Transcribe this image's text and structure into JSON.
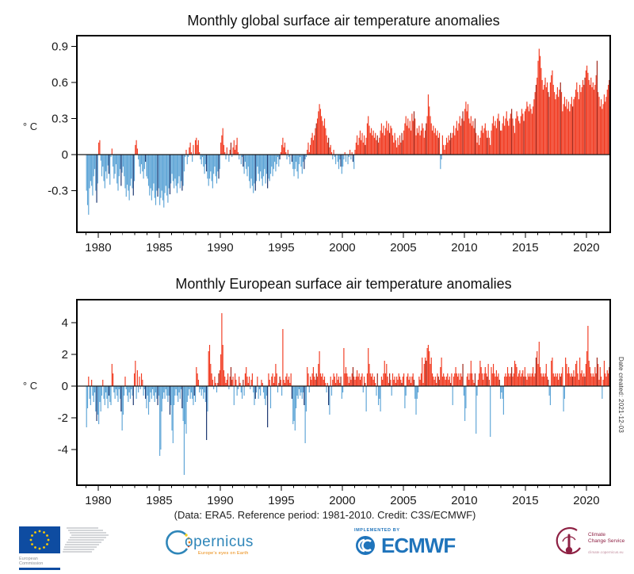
{
  "page": {
    "background": "#ffffff"
  },
  "footer": {
    "caption": "(Data: ERA5.  Reference period: 1981-2010.  Credit: C3S/ECMWF)"
  },
  "meta": {
    "date_created": "Date created: 2021-12-03"
  },
  "logos": {
    "eu": {
      "line1": "European",
      "line2": "Commission"
    },
    "copernicus": {
      "name": "opernicus",
      "tagline": "Europe's eyes on Earth"
    },
    "ecmwf": {
      "pre": "IMPLEMENTED BY",
      "name": "ECMWF"
    },
    "c3s": {
      "line1": "Climate",
      "line2": "Change Service",
      "tagline": "climate.copernicus.eu"
    }
  },
  "chart_data": [
    {
      "type": "bar",
      "title": "Monthly global surface air temperature anomalies",
      "xlabel": "",
      "ylabel": "° C",
      "x_start": "1979-01",
      "x_end": "2021-11",
      "xlim": [
        1978.25,
        2021.95
      ],
      "ylim": [
        -0.645,
        0.985
      ],
      "yticks": [
        0.9,
        0.6,
        0.3,
        0,
        -0.3
      ],
      "ytick_labels": [
        "0.9",
        "0.6",
        "0.3",
        "0",
        "-0.3"
      ],
      "xticks": [
        1980,
        1985,
        1990,
        1995,
        2000,
        2005,
        2010,
        2015,
        2020
      ],
      "xtick_labels": [
        "1980",
        "1985",
        "1990",
        "1995",
        "2000",
        "2005",
        "2010",
        "2015",
        "2020"
      ],
      "minor_xtick_every_years": 1,
      "grid": false,
      "legend": false,
      "highlight_month": 11,
      "colors": {
        "positive": "#F13A20",
        "negative": "#5CA4D6",
        "positive_highlight": "#9C2014",
        "negative_highlight": "#132F6B",
        "axis": "#000000"
      },
      "values": [
        -0.3,
        -0.42,
        -0.5,
        -0.28,
        -0.22,
        -0.26,
        -0.34,
        -0.18,
        -0.12,
        -0.3,
        -0.4,
        -0.24,
        0.1,
        0.12,
        -0.05,
        -0.18,
        -0.1,
        -0.22,
        -0.28,
        -0.14,
        -0.2,
        -0.09,
        -0.16,
        -0.25,
        -0.02,
        0.05,
        -0.1,
        -0.2,
        -0.16,
        -0.08,
        -0.24,
        -0.3,
        -0.18,
        -0.12,
        -0.26,
        -0.15,
        -0.1,
        -0.18,
        -0.28,
        -0.35,
        -0.25,
        -0.3,
        -0.38,
        -0.26,
        -0.2,
        -0.28,
        -0.34,
        -0.22,
        0.08,
        0.12,
        0.05,
        -0.04,
        -0.1,
        -0.16,
        -0.08,
        -0.14,
        -0.2,
        -0.12,
        -0.06,
        -0.18,
        -0.2,
        -0.26,
        -0.34,
        -0.28,
        -0.38,
        -0.3,
        -0.24,
        -0.36,
        -0.42,
        -0.3,
        -0.35,
        -0.28,
        -0.42,
        -0.36,
        -0.3,
        -0.38,
        -0.44,
        -0.32,
        -0.26,
        -0.34,
        -0.4,
        -0.28,
        -0.33,
        -0.24,
        -0.16,
        -0.22,
        -0.28,
        -0.2,
        -0.26,
        -0.32,
        -0.24,
        -0.18,
        -0.28,
        -0.22,
        -0.3,
        -0.26,
        -0.14,
        -0.02,
        0.04,
        -0.08,
        -0.02,
        0.06,
        0.1,
        0.02,
        -0.06,
        0.08,
        0.0,
        0.12,
        0.14,
        0.08,
        0.12,
        0.02,
        -0.04,
        -0.08,
        -0.02,
        -0.1,
        -0.16,
        -0.08,
        -0.14,
        -0.2,
        -0.26,
        -0.2,
        -0.14,
        -0.22,
        -0.28,
        -0.16,
        -0.1,
        -0.18,
        -0.24,
        -0.14,
        -0.2,
        -0.12,
        0.1,
        0.16,
        0.22,
        0.08,
        0.02,
        -0.04,
        0.06,
        0.0,
        -0.06,
        0.04,
        0.1,
        -0.02,
        0.06,
        0.12,
        0.04,
        0.08,
        0.14,
        0.02,
        -0.04,
        0.0,
        -0.08,
        -0.02,
        -0.1,
        -0.16,
        -0.06,
        -0.12,
        -0.18,
        -0.1,
        -0.22,
        -0.28,
        -0.2,
        -0.26,
        -0.32,
        -0.24,
        -0.3,
        -0.22,
        -0.1,
        -0.16,
        -0.22,
        -0.14,
        -0.2,
        -0.26,
        -0.18,
        -0.12,
        -0.24,
        -0.16,
        -0.28,
        -0.2,
        -0.22,
        -0.16,
        -0.1,
        -0.18,
        -0.12,
        -0.06,
        -0.14,
        -0.08,
        -0.02,
        -0.1,
        -0.04,
        0.02,
        0.08,
        0.14,
        0.06,
        0.1,
        0.02,
        -0.04,
        0.04,
        -0.02,
        -0.08,
        0.0,
        -0.06,
        -0.12,
        -0.18,
        -0.12,
        -0.06,
        -0.14,
        -0.2,
        -0.08,
        -0.02,
        -0.1,
        -0.16,
        -0.06,
        -0.12,
        -0.04,
        -0.02,
        0.04,
        0.1,
        0.02,
        0.08,
        0.14,
        0.18,
        0.12,
        0.16,
        0.22,
        0.26,
        0.3,
        0.36,
        0.42,
        0.38,
        0.32,
        0.28,
        0.24,
        0.3,
        0.22,
        0.16,
        0.1,
        0.14,
        0.06,
        0.08,
        0.02,
        -0.04,
        0.04,
        -0.02,
        -0.08,
        0.0,
        -0.06,
        -0.12,
        -0.04,
        -0.1,
        -0.16,
        -0.1,
        -0.04,
        0.02,
        -0.06,
        0.0,
        -0.08,
        -0.02,
        0.04,
        -0.04,
        0.02,
        -0.06,
        -0.12,
        0.04,
        0.1,
        0.16,
        0.08,
        0.14,
        0.2,
        0.12,
        0.18,
        0.1,
        0.16,
        0.08,
        0.14,
        0.26,
        0.32,
        0.24,
        0.18,
        0.22,
        0.16,
        0.2,
        0.14,
        0.18,
        0.12,
        0.16,
        0.1,
        0.14,
        0.2,
        0.26,
        0.18,
        0.24,
        0.16,
        0.22,
        0.28,
        0.2,
        0.26,
        0.18,
        0.24,
        0.22,
        0.16,
        0.1,
        0.18,
        0.12,
        0.06,
        0.14,
        0.08,
        0.16,
        0.1,
        0.18,
        0.12,
        0.2,
        0.26,
        0.32,
        0.24,
        0.3,
        0.22,
        0.28,
        0.2,
        0.34,
        0.28,
        0.36,
        0.3,
        0.16,
        0.22,
        0.18,
        0.24,
        0.16,
        0.2,
        0.26,
        0.22,
        0.14,
        0.2,
        0.26,
        0.32,
        0.5,
        0.4,
        0.32,
        0.26,
        0.2,
        0.24,
        0.18,
        0.22,
        0.16,
        0.2,
        0.14,
        0.18,
        -0.12,
        -0.04,
        0.16,
        0.08,
        0.04,
        0.08,
        0.14,
        0.1,
        0.16,
        0.12,
        0.18,
        0.14,
        0.18,
        0.24,
        0.16,
        0.22,
        0.28,
        0.2,
        0.26,
        0.32,
        0.24,
        0.3,
        0.36,
        0.28,
        0.38,
        0.44,
        0.36,
        0.42,
        0.3,
        0.26,
        0.32,
        0.24,
        0.28,
        0.22,
        0.3,
        0.18,
        0.1,
        0.16,
        0.08,
        0.14,
        0.2,
        0.24,
        0.18,
        0.22,
        0.26,
        0.2,
        0.14,
        0.2,
        0.14,
        0.08,
        0.2,
        0.26,
        0.32,
        0.24,
        0.28,
        0.22,
        0.3,
        0.34,
        0.28,
        0.2,
        0.2,
        0.26,
        0.32,
        0.24,
        0.3,
        0.36,
        0.28,
        0.24,
        0.3,
        0.34,
        0.38,
        0.3,
        0.24,
        0.18,
        0.3,
        0.36,
        0.32,
        0.28,
        0.26,
        0.32,
        0.38,
        0.34,
        0.28,
        0.36,
        0.38,
        0.44,
        0.4,
        0.36,
        0.42,
        0.38,
        0.34,
        0.4,
        0.46,
        0.52,
        0.58,
        0.64,
        0.78,
        0.88,
        0.82,
        0.72,
        0.62,
        0.54,
        0.58,
        0.64,
        0.56,
        0.6,
        0.52,
        0.48,
        0.6,
        0.66,
        0.7,
        0.58,
        0.52,
        0.46,
        0.5,
        0.56,
        0.48,
        0.54,
        0.6,
        0.52,
        0.36,
        0.42,
        0.48,
        0.4,
        0.46,
        0.38,
        0.44,
        0.36,
        0.42,
        0.48,
        0.4,
        0.46,
        0.48,
        0.54,
        0.6,
        0.52,
        0.46,
        0.58,
        0.52,
        0.56,
        0.62,
        0.58,
        0.64,
        0.7,
        0.74,
        0.68,
        0.62,
        0.58,
        0.64,
        0.56,
        0.6,
        0.54,
        0.58,
        0.66,
        0.78,
        0.52,
        0.48,
        0.4,
        0.46,
        0.38,
        0.42,
        0.5,
        0.44,
        0.48,
        0.54,
        0.58,
        0.62
      ]
    },
    {
      "type": "bar",
      "title": "Monthly European surface air temperature anomalies",
      "xlabel": "",
      "ylabel": "° C",
      "x_start": "1979-01",
      "x_end": "2021-11",
      "xlim": [
        1978.25,
        2021.95
      ],
      "ylim": [
        -6.25,
        5.45
      ],
      "yticks": [
        4,
        2,
        0,
        -2,
        -4
      ],
      "ytick_labels": [
        "4",
        "2",
        "0",
        "-2",
        "-4"
      ],
      "xticks": [
        1980,
        1985,
        1990,
        1995,
        2000,
        2005,
        2010,
        2015,
        2020
      ],
      "xtick_labels": [
        "1980",
        "1985",
        "1990",
        "1995",
        "2000",
        "2005",
        "2010",
        "2015",
        "2020"
      ],
      "minor_xtick_every_years": 1,
      "grid": false,
      "legend": false,
      "highlight_month": 11,
      "colors": {
        "positive": "#F13A20",
        "negative": "#5CA4D6",
        "positive_highlight": "#9C2014",
        "negative_highlight": "#132F6B",
        "axis": "#000000"
      },
      "values": [
        -2.6,
        -1.4,
        0.6,
        -0.8,
        -1.2,
        0.4,
        -0.6,
        -1.0,
        -0.4,
        -1.6,
        -2.2,
        -1.8,
        -2.4,
        -1.0,
        -1.6,
        -0.6,
        0.4,
        -0.8,
        -1.2,
        -0.4,
        -0.8,
        -1.4,
        -0.6,
        -1.0,
        -1.2,
        1.4,
        0.8,
        -0.4,
        -0.8,
        -0.2,
        -0.6,
        -1.0,
        -0.2,
        -0.8,
        -1.6,
        -2.8,
        -1.8,
        -0.6,
        0.6,
        -0.2,
        -0.6,
        -1.0,
        -0.4,
        -0.8,
        -0.2,
        -0.6,
        -1.2,
        0.8,
        1.6,
        -0.8,
        1.0,
        -0.4,
        0.6,
        -0.2,
        0.8,
        0.4,
        -0.6,
        -0.2,
        -0.8,
        -1.4,
        -0.6,
        -1.8,
        -1.0,
        -0.4,
        -0.8,
        -0.2,
        -0.6,
        -1.0,
        -0.4,
        -0.8,
        -1.2,
        -0.6,
        -4.4,
        -4.0,
        -1.6,
        -0.8,
        -0.4,
        -0.8,
        -0.2,
        -0.6,
        -1.0,
        -0.6,
        -1.8,
        -1.2,
        -2.8,
        -3.6,
        -1.2,
        -0.6,
        -0.2,
        -0.6,
        -1.0,
        -0.4,
        -0.8,
        -0.2,
        -1.4,
        -2.2,
        -5.6,
        -2.4,
        -3.0,
        -1.0,
        -0.6,
        -0.2,
        -0.8,
        -0.4,
        -0.8,
        -1.2,
        -0.6,
        -1.0,
        1.2,
        0.8,
        0.4,
        -0.4,
        -0.2,
        -0.6,
        -0.2,
        -0.8,
        -0.4,
        -1.0,
        -3.4,
        -1.6,
        2.2,
        2.6,
        1.4,
        0.8,
        0.4,
        -0.2,
        0.6,
        0.2,
        -0.4,
        0.2,
        0.8,
        1.0,
        2.0,
        4.6,
        2.6,
        1.0,
        0.6,
        0.2,
        0.4,
        0.8,
        -0.2,
        0.6,
        1.2,
        0.4,
        0.6,
        -1.2,
        0.8,
        0.4,
        -0.6,
        -0.2,
        0.6,
        0.2,
        -0.4,
        -0.8,
        0.4,
        -0.6,
        0.8,
        1.2,
        0.6,
        0.2,
        0.6,
        -0.2,
        0.4,
        0.8,
        -0.4,
        -1.2,
        -0.8,
        -0.4,
        0.6,
        -0.8,
        -0.2,
        -0.6,
        0.4,
        0.2,
        -0.4,
        -0.8,
        -1.2,
        -0.6,
        -2.6,
        0.8,
        0.4,
        -1.4,
        0.6,
        0.8,
        0.2,
        0.6,
        1.4,
        0.8,
        -0.4,
        0.2,
        0.6,
        0.4,
        -0.6,
        3.6,
        0.4,
        0.2,
        0.6,
        0.8,
        0.4,
        0.6,
        0.2,
        0.8,
        -0.8,
        -2.4,
        -2.2,
        -2.8,
        -1.4,
        -0.6,
        -0.8,
        -0.2,
        -0.6,
        -0.4,
        -0.8,
        -0.4,
        -1.2,
        -3.6,
        -1.6,
        1.2,
        0.8,
        -0.4,
        0.6,
        0.4,
        0.8,
        1.2,
        0.6,
        0.4,
        0.8,
        0.6,
        1.4,
        2.2,
        0.8,
        0.6,
        0.8,
        0.4,
        0.6,
        0.2,
        -0.4,
        0.2,
        -1.2,
        -1.8,
        0.6,
        -0.6,
        0.4,
        0.8,
        0.6,
        0.2,
        0.8,
        0.4,
        0.6,
        0.2,
        0.6,
        -0.8,
        -0.4,
        2.4,
        0.8,
        1.2,
        0.8,
        0.6,
        0.2,
        0.6,
        0.4,
        0.8,
        1.2,
        0.6,
        0.4,
        0.6,
        1.0,
        0.6,
        0.8,
        0.4,
        0.6,
        0.8,
        -0.4,
        0.6,
        0.2,
        -1.6,
        0.8,
        2.4,
        1.4,
        0.8,
        0.6,
        0.8,
        0.4,
        0.6,
        0.2,
        -0.6,
        0.8,
        -1.2,
        -0.8,
        -1.6,
        0.6,
        0.4,
        0.8,
        1.6,
        0.8,
        1.4,
        0.6,
        0.2,
        0.8,
        0.4,
        -0.6,
        0.8,
        0.4,
        0.6,
        0.2,
        0.6,
        0.4,
        0.8,
        0.6,
        0.4,
        0.2,
        0.6,
        0.8,
        -1.4,
        -0.6,
        0.6,
        0.8,
        0.4,
        0.6,
        0.2,
        0.6,
        0.8,
        0.4,
        -0.8,
        -1.8,
        -0.8,
        -0.4,
        0.6,
        0.4,
        0.8,
        1.8,
        0.2,
        1.4,
        1.8,
        1.6,
        2.4,
        2.6,
        2.2,
        1.4,
        1.8,
        0.8,
        0.6,
        0.4,
        0.6,
        0.2,
        0.8,
        0.6,
        0.4,
        1.2,
        1.8,
        0.6,
        0.8,
        0.6,
        0.4,
        0.6,
        0.8,
        0.4,
        0.6,
        0.2,
        0.8,
        -1.2,
        0.6,
        0.8,
        1.2,
        0.8,
        0.6,
        0.8,
        0.4,
        0.8,
        0.6,
        1.4,
        -0.6,
        -2.2,
        -1.4,
        0.6,
        0.8,
        0.4,
        0.8,
        1.6,
        0.8,
        0.4,
        0.2,
        0.8,
        -3.0,
        -0.6,
        0.4,
        0.8,
        1.6,
        1.2,
        0.8,
        0.4,
        0.8,
        1.2,
        0.8,
        0.6,
        1.4,
        0.4,
        -3.2,
        1.2,
        0.8,
        1.4,
        0.8,
        0.6,
        1.0,
        0.6,
        0.8,
        0.4,
        -0.8,
        -0.4,
        -0.8,
        -1.8,
        0.6,
        0.8,
        0.6,
        1.2,
        0.8,
        0.6,
        0.8,
        1.2,
        0.6,
        0.8,
        1.6,
        1.4,
        1.2,
        0.6,
        0.8,
        1.0,
        0.6,
        0.8,
        1.0,
        0.6,
        1.2,
        0.6,
        0.4,
        0.8,
        0.6,
        0.8,
        0.6,
        0.8,
        1.2,
        0.6,
        0.8,
        1.8,
        2.2,
        1.4,
        2.8,
        1.2,
        0.8,
        0.6,
        0.8,
        0.6,
        0.8,
        1.4,
        0.6,
        0.4,
        -0.6,
        -1.2,
        1.6,
        1.8,
        0.8,
        0.6,
        0.8,
        0.6,
        0.8,
        0.4,
        0.8,
        0.6,
        0.8,
        1.2,
        -1.6,
        -0.8,
        1.8,
        1.4,
        0.8,
        1.2,
        0.8,
        0.6,
        0.8,
        0.6,
        1.0,
        0.6,
        1.4,
        1.6,
        0.8,
        0.4,
        1.8,
        0.8,
        1.0,
        0.6,
        0.8,
        0.6,
        1.4,
        2.2,
        3.8,
        1.6,
        1.2,
        0.8,
        0.6,
        0.8,
        0.6,
        1.2,
        0.8,
        1.8,
        1.4,
        0.4,
        1.2,
        0.6,
        -0.8,
        0.4,
        1.6,
        0.8,
        0.6,
        1.0,
        0.8,
        1.2
      ]
    }
  ]
}
